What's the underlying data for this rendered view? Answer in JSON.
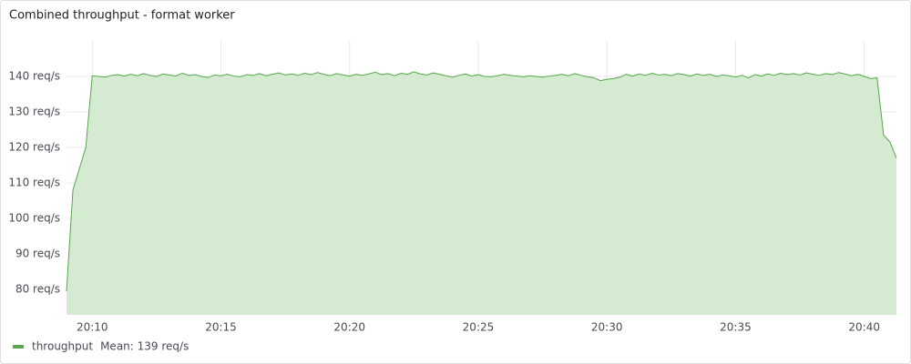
{
  "chart_data": {
    "type": "line",
    "title": "Combined throughput - format worker",
    "fill": true,
    "grid": true,
    "legend": "bottom-left",
    "x": [
      "20:09:00",
      "20:09:15",
      "20:09:30",
      "20:09:45",
      "20:10:00",
      "20:10:15",
      "20:10:30",
      "20:10:45",
      "20:11:00",
      "20:11:15",
      "20:11:30",
      "20:11:45",
      "20:12:00",
      "20:12:15",
      "20:12:30",
      "20:12:45",
      "20:13:00",
      "20:13:15",
      "20:13:30",
      "20:13:45",
      "20:14:00",
      "20:14:15",
      "20:14:30",
      "20:14:45",
      "20:15:00",
      "20:15:15",
      "20:15:30",
      "20:15:45",
      "20:16:00",
      "20:16:15",
      "20:16:30",
      "20:16:45",
      "20:17:00",
      "20:17:15",
      "20:17:30",
      "20:17:45",
      "20:18:00",
      "20:18:15",
      "20:18:30",
      "20:18:45",
      "20:19:00",
      "20:19:15",
      "20:19:30",
      "20:19:45",
      "20:20:00",
      "20:20:15",
      "20:20:30",
      "20:20:45",
      "20:21:00",
      "20:21:15",
      "20:21:30",
      "20:21:45",
      "20:22:00",
      "20:22:15",
      "20:22:30",
      "20:22:45",
      "20:23:00",
      "20:23:15",
      "20:23:30",
      "20:23:45",
      "20:24:00",
      "20:24:15",
      "20:24:30",
      "20:24:45",
      "20:25:00",
      "20:25:15",
      "20:25:30",
      "20:25:45",
      "20:26:00",
      "20:26:15",
      "20:26:30",
      "20:26:45",
      "20:27:00",
      "20:27:15",
      "20:27:30",
      "20:27:45",
      "20:28:00",
      "20:28:15",
      "20:28:30",
      "20:28:45",
      "20:29:00",
      "20:29:15",
      "20:29:30",
      "20:29:45",
      "20:30:00",
      "20:30:15",
      "20:30:30",
      "20:30:45",
      "20:31:00",
      "20:31:15",
      "20:31:30",
      "20:31:45",
      "20:32:00",
      "20:32:15",
      "20:32:30",
      "20:32:45",
      "20:33:00",
      "20:33:15",
      "20:33:30",
      "20:33:45",
      "20:34:00",
      "20:34:15",
      "20:34:30",
      "20:34:45",
      "20:35:00",
      "20:35:15",
      "20:35:30",
      "20:35:45",
      "20:36:00",
      "20:36:15",
      "20:36:30",
      "20:36:45",
      "20:37:00",
      "20:37:15",
      "20:37:30",
      "20:37:45",
      "20:38:00",
      "20:38:15",
      "20:38:30",
      "20:38:45",
      "20:39:00",
      "20:39:15",
      "20:39:30",
      "20:39:45",
      "20:40:00",
      "20:40:15",
      "20:40:30",
      "20:40:45",
      "20:41:00",
      "20:41:15"
    ],
    "series": [
      {
        "name": "throughput",
        "color": "#56a64b",
        "fill_color": "#d4ebd2",
        "legend_stat": "Mean: 139 req/s",
        "values": [
          79.5,
          108,
          114,
          120,
          140.2,
          140.0,
          139.8,
          140.3,
          140.5,
          140.1,
          140.6,
          140.2,
          140.8,
          140.3,
          140.0,
          140.7,
          140.4,
          140.1,
          140.9,
          140.3,
          140.5,
          140.0,
          139.7,
          140.4,
          140.2,
          140.6,
          140.1,
          139.9,
          140.5,
          140.3,
          140.8,
          140.2,
          140.6,
          141.0,
          140.4,
          140.7,
          140.3,
          140.9,
          140.5,
          141.1,
          140.6,
          140.2,
          140.8,
          140.4,
          140.1,
          140.6,
          140.3,
          140.7,
          141.2,
          140.5,
          140.8,
          140.2,
          140.9,
          140.6,
          141.3,
          140.7,
          140.4,
          141.0,
          140.6,
          140.2,
          139.8,
          140.3,
          140.7,
          140.1,
          140.5,
          140.0,
          139.9,
          140.2,
          140.6,
          140.3,
          140.1,
          139.9,
          140.2,
          140.0,
          139.8,
          140.1,
          140.3,
          140.6,
          140.2,
          140.8,
          140.3,
          139.9,
          139.6,
          138.8,
          139.2,
          139.4,
          139.8,
          140.6,
          140.1,
          140.7,
          140.3,
          140.9,
          140.4,
          140.6,
          140.2,
          140.8,
          140.5,
          140.1,
          140.7,
          140.3,
          140.6,
          140.0,
          140.4,
          140.2,
          139.8,
          140.3,
          139.6,
          140.5,
          140.1,
          140.7,
          140.3,
          140.9,
          140.5,
          140.8,
          140.4,
          141.0,
          140.6,
          140.3,
          140.8,
          140.5,
          141.1,
          140.7,
          140.2,
          140.6,
          140.0,
          139.4,
          139.6,
          123.5,
          121.5,
          117
        ]
      }
    ],
    "xlim": [
      "20:09:00",
      "20:41:15"
    ],
    "xticks": [
      "20:10",
      "20:15",
      "20:20",
      "20:25",
      "20:30",
      "20:35",
      "20:40"
    ],
    "ylim": [
      72.8,
      150
    ],
    "yticks": [
      {
        "value": 80,
        "label": "80 req/s"
      },
      {
        "value": 90,
        "label": "90 req/s"
      },
      {
        "value": 100,
        "label": "100 req/s"
      },
      {
        "value": 110,
        "label": "110 req/s"
      },
      {
        "value": 120,
        "label": "120 req/s"
      },
      {
        "value": 130,
        "label": "130 req/s"
      },
      {
        "value": 140,
        "label": "140 req/s"
      }
    ]
  }
}
